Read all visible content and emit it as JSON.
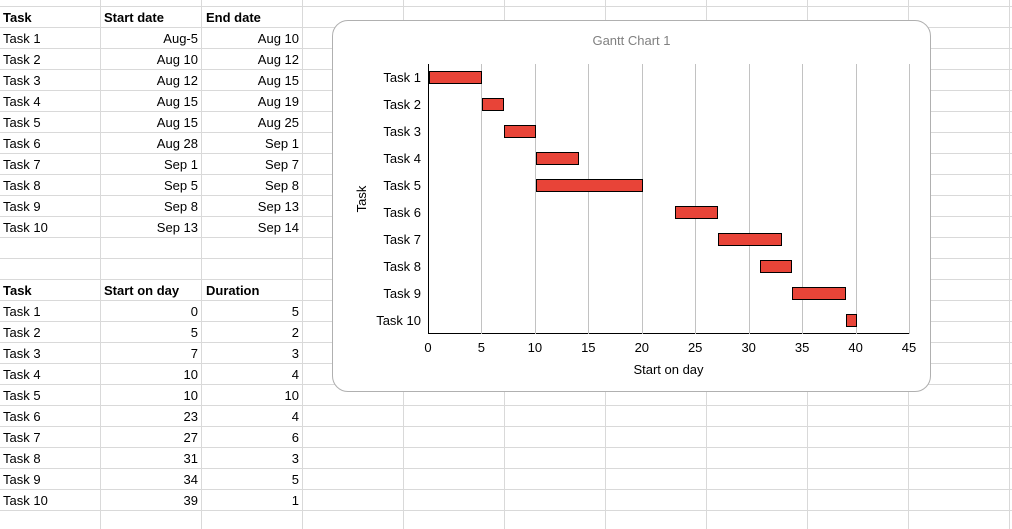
{
  "sheet": {
    "date_table": {
      "headers": [
        "Task",
        "Start date",
        "End date"
      ],
      "rows": [
        [
          "Task 1",
          "Aug-5",
          "Aug 10"
        ],
        [
          "Task 2",
          "Aug 10",
          "Aug 12"
        ],
        [
          "Task 3",
          "Aug 12",
          "Aug 15"
        ],
        [
          "Task 4",
          "Aug 15",
          "Aug 19"
        ],
        [
          "Task 5",
          "Aug 15",
          "Aug 25"
        ],
        [
          "Task 6",
          "Aug 28",
          "Sep 1"
        ],
        [
          "Task 7",
          "Sep 1",
          "Sep 7"
        ],
        [
          "Task 8",
          "Sep 5",
          "Sep 8"
        ],
        [
          "Task 9",
          "Sep 8",
          "Sep 13"
        ],
        [
          "Task 10",
          "Sep 13",
          "Sep 14"
        ]
      ]
    },
    "day_table": {
      "headers": [
        "Task",
        "Start on day",
        "Duration"
      ],
      "rows": [
        [
          "Task 1",
          "0",
          "5"
        ],
        [
          "Task 2",
          "5",
          "2"
        ],
        [
          "Task 3",
          "7",
          "3"
        ],
        [
          "Task 4",
          "10",
          "4"
        ],
        [
          "Task 5",
          "10",
          "10"
        ],
        [
          "Task 6",
          "23",
          "4"
        ],
        [
          "Task 7",
          "27",
          "6"
        ],
        [
          "Task 8",
          "31",
          "3"
        ],
        [
          "Task 9",
          "34",
          "5"
        ],
        [
          "Task 10",
          "39",
          "1"
        ]
      ]
    }
  },
  "chart_data": {
    "type": "bar",
    "orientation": "horizontal",
    "title": "Gantt Chart 1",
    "xlabel": "Start on day",
    "ylabel": "Task",
    "categories": [
      "Task 1",
      "Task 2",
      "Task 3",
      "Task 4",
      "Task 5",
      "Task 6",
      "Task 7",
      "Task 8",
      "Task 9",
      "Task 10"
    ],
    "series": [
      {
        "name": "Start on day",
        "values": [
          0,
          5,
          7,
          10,
          10,
          23,
          27,
          31,
          34,
          39
        ]
      },
      {
        "name": "Duration",
        "values": [
          5,
          2,
          3,
          4,
          10,
          4,
          6,
          3,
          5,
          1
        ]
      }
    ],
    "xlim": [
      0,
      45
    ],
    "x_ticks": [
      0,
      5,
      10,
      15,
      20,
      25,
      30,
      35,
      40,
      45
    ],
    "grid": "vertical",
    "legend": "none",
    "bar_color": "#e84438",
    "bar_border_color": "#000000",
    "title_color": "#808080"
  },
  "colors": {
    "background": "#ffffff",
    "sheet_gridline": "#d9d9d9",
    "chart_gridline": "#c2c2c2",
    "axis": "#000000",
    "chart_border": "#b0b0b0"
  }
}
